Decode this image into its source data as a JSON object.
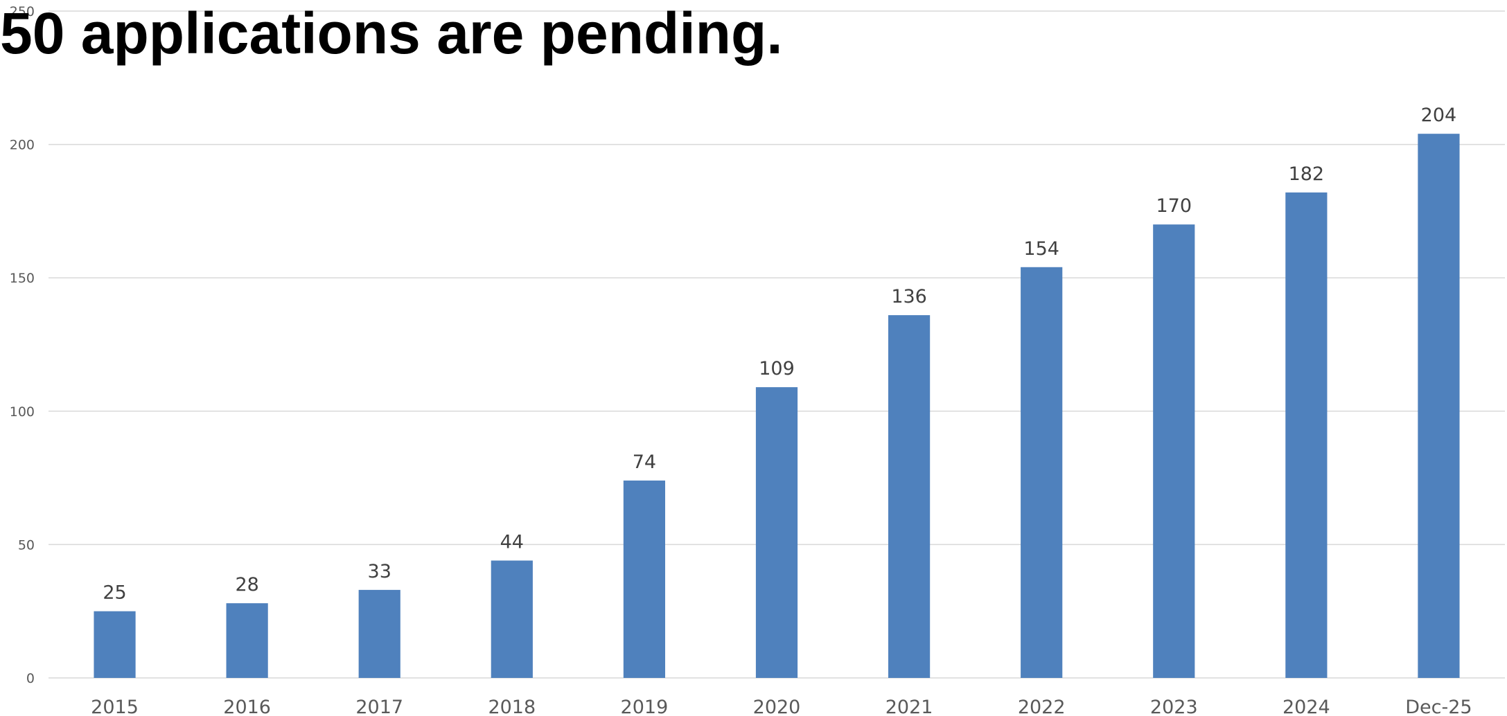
{
  "headline": "50 applications are pending.",
  "chart_data": {
    "type": "bar",
    "title": "",
    "xlabel": "",
    "ylabel": "",
    "categories": [
      "2015",
      "2016",
      "2017",
      "2018",
      "2019",
      "2020",
      "2021",
      "2022",
      "2023",
      "2024",
      "Dec-25"
    ],
    "values": [
      25,
      28,
      33,
      44,
      74,
      109,
      136,
      154,
      170,
      182,
      204
    ],
    "ylim": [
      0,
      250
    ],
    "yticks": [
      0,
      50,
      100,
      150,
      200,
      250
    ],
    "grid": true,
    "legend": "none",
    "data_labels": true,
    "bar_color": "#4f81bd",
    "gridline_color": "#d9d9d9"
  }
}
